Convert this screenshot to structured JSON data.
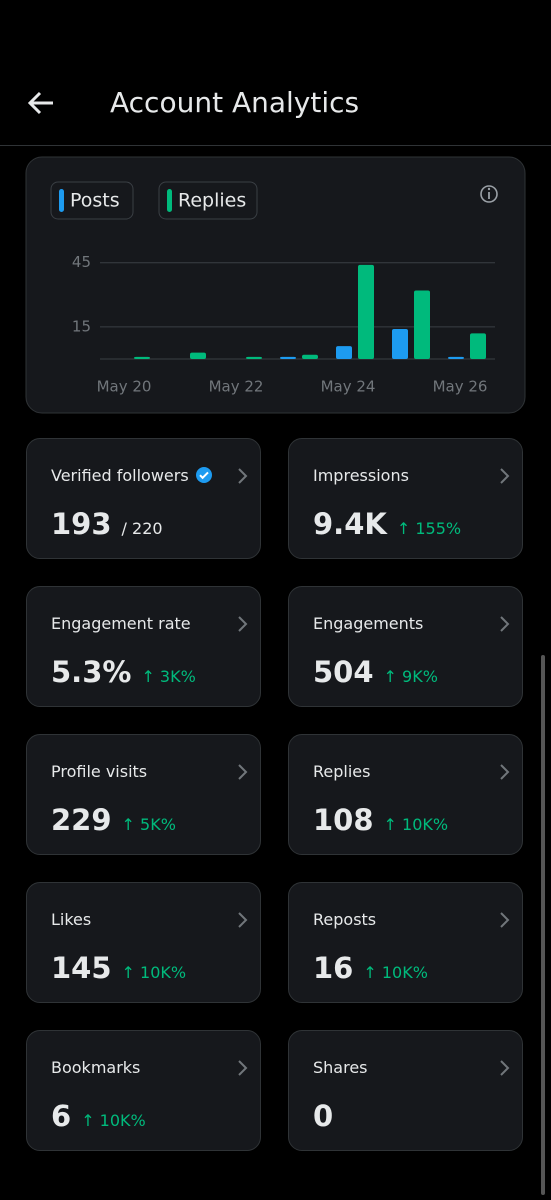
{
  "header": {
    "title": "Account Analytics"
  },
  "chart_data": {
    "type": "bar",
    "categories": [
      "May 20",
      null,
      "May 22",
      null,
      "May 24",
      null,
      "May 26"
    ],
    "series": [
      {
        "name": "Posts",
        "color": "#1d9bf0",
        "values": [
          0,
          0,
          0,
          1,
          6,
          14,
          1
        ]
      },
      {
        "name": "Replies",
        "color": "#00ba7c",
        "values": [
          1,
          3,
          1,
          2,
          44,
          32,
          12
        ]
      }
    ],
    "ylim": [
      0,
      50
    ],
    "yticks": [
      15,
      45
    ],
    "grid": true
  },
  "cards": [
    {
      "label": "Verified followers",
      "value": "193",
      "total": "/ 220"
    },
    {
      "label": "Impressions",
      "value": "9.4K",
      "change": "↑ 155%"
    },
    {
      "label": "Engagement rate",
      "value": "5.3%",
      "change": "↑ 3K%"
    },
    {
      "label": "Engagements",
      "value": "504",
      "change": "↑ 9K%"
    },
    {
      "label": "Profile visits",
      "value": "229",
      "change": "↑ 5K%"
    },
    {
      "label": "Replies",
      "value": "108",
      "change": "↑ 10K%"
    },
    {
      "label": "Likes",
      "value": "145",
      "change": "↑ 10K%"
    },
    {
      "label": "Reposts",
      "value": "16",
      "change": "↑ 10K%"
    },
    {
      "label": "Bookmarks",
      "value": "6",
      "change": "↑ 10K%"
    },
    {
      "label": "Shares",
      "value": "0"
    }
  ]
}
